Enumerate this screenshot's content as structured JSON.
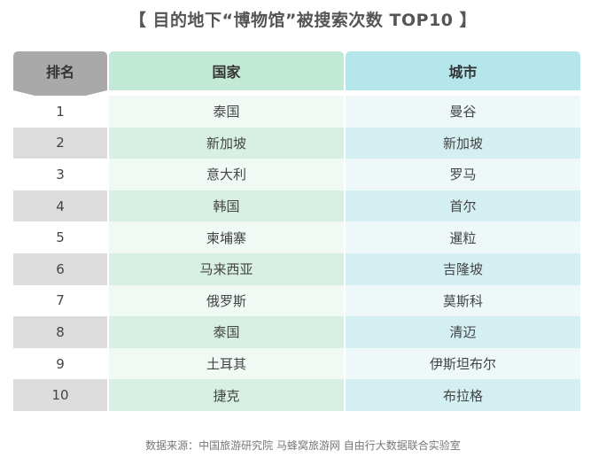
{
  "title": "【 目的地下“博物馆”被搜索次数 TOP10 】",
  "chart_data": {
    "type": "table",
    "columns": [
      "排名",
      "国家",
      "城市"
    ],
    "rows": [
      {
        "rank": "1",
        "country": "泰国",
        "city": "曼谷"
      },
      {
        "rank": "2",
        "country": "新加坡",
        "city": "新加坡"
      },
      {
        "rank": "3",
        "country": "意大利",
        "city": "罗马"
      },
      {
        "rank": "4",
        "country": "韩国",
        "city": "首尔"
      },
      {
        "rank": "5",
        "country": "柬埔寨",
        "city": "暹粒"
      },
      {
        "rank": "6",
        "country": "马来西亚",
        "city": "吉隆坡"
      },
      {
        "rank": "7",
        "country": "俄罗斯",
        "city": "莫斯科"
      },
      {
        "rank": "8",
        "country": "泰国",
        "city": "清迈"
      },
      {
        "rank": "9",
        "country": "土耳其",
        "city": "伊斯坦布尔"
      },
      {
        "rank": "10",
        "country": "捷克",
        "city": "布拉格"
      }
    ]
  },
  "source": "数据来源：中国旅游研究院 马蜂窝旅游网 自由行大数据联合实验室",
  "colors": {
    "rank_header": "#a9a9a9",
    "country_header": "#c2e9d5",
    "city_header": "#b4e6ec",
    "rank_stripe": "#dcdcdc",
    "country_stripe": "#d8f0e3",
    "city_stripe": "#d4eff2"
  }
}
